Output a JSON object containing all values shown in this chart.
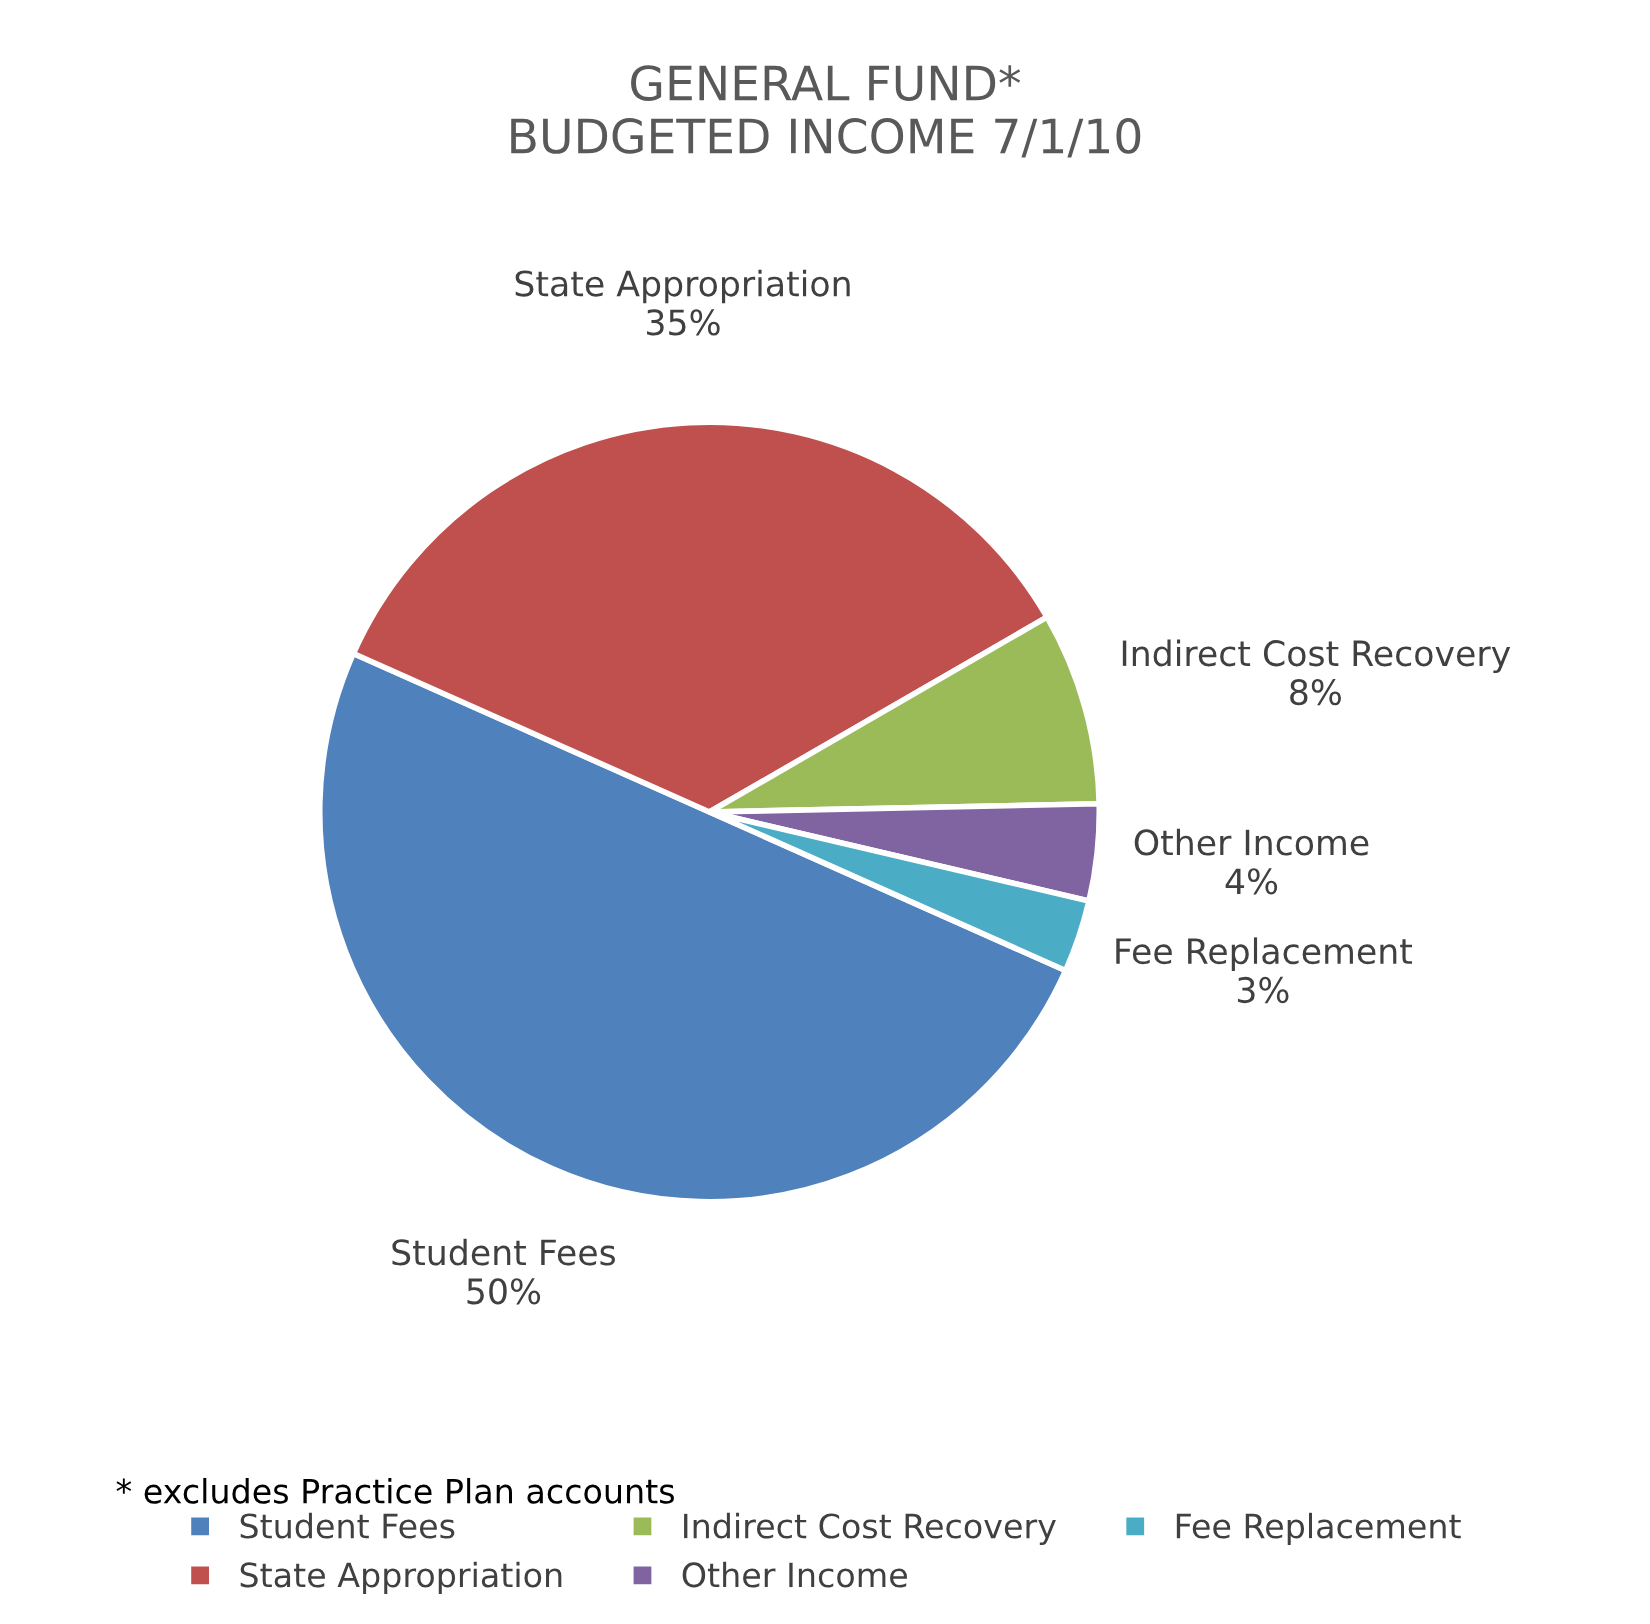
{
  "chart_data": {
    "type": "pie",
    "title": "GENERAL FUND*\nBUDGETED INCOME 7/1/10",
    "categories": [
      "Student Fees",
      "State Appropriation",
      "Indirect Cost Recovery",
      "Other Income",
      "Fee Replacement"
    ],
    "values": [
      50,
      35,
      8,
      4,
      3
    ],
    "value_labels": [
      "50%",
      "35%",
      "8%",
      "4%",
      "3%"
    ],
    "colors": [
      "#4f81bd",
      "#c0504d",
      "#9bbb59",
      "#8064a2",
      "#4bacc6"
    ],
    "annotations": [
      "* excludes Practice Plan accounts"
    ],
    "legend": "bottom"
  }
}
